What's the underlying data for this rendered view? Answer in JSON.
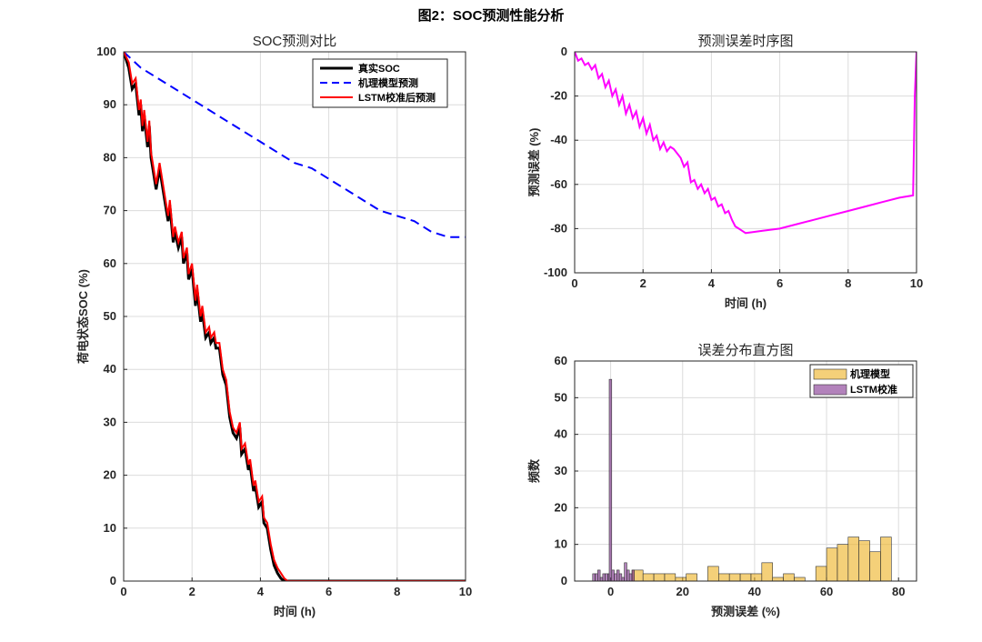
{
  "figure": {
    "title": "图2：SOC预测性能分析"
  },
  "chart_data": [
    {
      "id": "soc",
      "type": "line",
      "title": "SOC预测对比",
      "xlabel": "时间 (h)",
      "ylabel": "荷电状态SOC (%)",
      "xlim": [
        0,
        10
      ],
      "ylim": [
        0,
        100
      ],
      "xticks": [
        0,
        2,
        4,
        6,
        8,
        10
      ],
      "yticks": [
        0,
        10,
        20,
        30,
        40,
        50,
        60,
        70,
        80,
        90,
        100
      ],
      "grid": true,
      "legend": "top-right",
      "series": [
        {
          "name": "真实SOC",
          "color": "#000000",
          "style": "solid",
          "x": [
            0,
            0.15,
            0.25,
            0.35,
            0.45,
            0.5,
            0.55,
            0.6,
            0.7,
            0.75,
            0.8,
            0.85,
            0.95,
            1.05,
            1.1,
            1.2,
            1.3,
            1.35,
            1.45,
            1.5,
            1.6,
            1.7,
            1.75,
            1.85,
            1.9,
            2.0,
            2.1,
            2.15,
            2.25,
            2.3,
            2.4,
            2.5,
            2.55,
            2.65,
            2.7,
            2.8,
            2.9,
            3.0,
            3.1,
            3.2,
            3.3,
            3.4,
            3.45,
            3.55,
            3.65,
            3.7,
            3.8,
            3.85,
            3.95,
            4.05,
            4.1,
            4.2,
            4.3,
            4.4,
            4.5,
            4.6,
            4.7,
            4.8,
            4.9,
            5.0,
            5.05,
            10
          ],
          "y": [
            100,
            97,
            93,
            94,
            88,
            90,
            85,
            88,
            82,
            86,
            80,
            78,
            74,
            78,
            76,
            72,
            68,
            71,
            64,
            66,
            63,
            65,
            60,
            62,
            57,
            59,
            52,
            55,
            49,
            51,
            46,
            47,
            45,
            46,
            44,
            44,
            39,
            37,
            31,
            28,
            27,
            29,
            24,
            25,
            21,
            22,
            17,
            18,
            14,
            15,
            11,
            10,
            6,
            3,
            1.5,
            0.5,
            0,
            0,
            0,
            0,
            0,
            0
          ]
        },
        {
          "name": "机理模型预测",
          "color": "#0000ff",
          "style": "dashed",
          "x": [
            0,
            0.5,
            1,
            1.5,
            2,
            2.5,
            3,
            3.5,
            4,
            4.5,
            5,
            5.5,
            6,
            6.5,
            7,
            7.5,
            8,
            8.5,
            9,
            9.5,
            10
          ],
          "y": [
            100,
            97,
            95,
            93,
            91,
            89,
            87,
            85,
            83,
            81,
            79,
            78,
            76,
            74,
            72,
            70,
            69,
            68,
            66,
            65,
            65
          ]
        },
        {
          "name": "LSTM校准后预测",
          "color": "#ff0000",
          "style": "solid",
          "x": [
            0,
            0.15,
            0.25,
            0.35,
            0.45,
            0.5,
            0.55,
            0.6,
            0.7,
            0.75,
            0.8,
            0.85,
            0.95,
            1.05,
            1.1,
            1.2,
            1.3,
            1.35,
            1.45,
            1.5,
            1.6,
            1.7,
            1.75,
            1.85,
            1.9,
            2.0,
            2.1,
            2.15,
            2.25,
            2.3,
            2.4,
            2.5,
            2.55,
            2.65,
            2.7,
            2.8,
            2.9,
            3.0,
            3.1,
            3.2,
            3.3,
            3.4,
            3.45,
            3.55,
            3.65,
            3.7,
            3.8,
            3.85,
            3.95,
            4.05,
            4.1,
            4.2,
            4.3,
            4.4,
            4.5,
            4.6,
            4.7,
            4.8,
            4.9,
            5.0,
            5.1,
            10
          ],
          "y": [
            100,
            98,
            94,
            95,
            89,
            91,
            86,
            89,
            83,
            87,
            81,
            79,
            75,
            79,
            77,
            73,
            69,
            72,
            65,
            67,
            64,
            66,
            61,
            63,
            58,
            60,
            53,
            56,
            50,
            52,
            47,
            48,
            46,
            47,
            45,
            45,
            40,
            38,
            32,
            29,
            28,
            30,
            25,
            26,
            22,
            23,
            18,
            19,
            15,
            16,
            12,
            11,
            7,
            4,
            2.5,
            1.5,
            0.5,
            0,
            0,
            0,
            0,
            0
          ]
        }
      ]
    },
    {
      "id": "err",
      "type": "line",
      "title": "预测误差时序图",
      "xlabel": "时间 (h)",
      "ylabel": "预测误差 (%)",
      "xlim": [
        0,
        10
      ],
      "ylim": [
        -100,
        0
      ],
      "xticks": [
        0,
        2,
        4,
        6,
        8,
        10
      ],
      "yticks": [
        -100,
        -80,
        -60,
        -40,
        -20,
        0
      ],
      "grid": true,
      "series": [
        {
          "name": "预测误差",
          "color": "#ff00ff",
          "style": "solid",
          "x": [
            0,
            0.1,
            0.2,
            0.3,
            0.4,
            0.5,
            0.6,
            0.7,
            0.8,
            0.9,
            1.0,
            1.1,
            1.2,
            1.3,
            1.4,
            1.5,
            1.6,
            1.7,
            1.8,
            1.9,
            2.0,
            2.1,
            2.2,
            2.3,
            2.4,
            2.5,
            2.6,
            2.7,
            2.8,
            2.9,
            3.0,
            3.1,
            3.2,
            3.3,
            3.4,
            3.5,
            3.6,
            3.7,
            3.8,
            3.9,
            4.0,
            4.1,
            4.2,
            4.3,
            4.4,
            4.5,
            4.6,
            4.7,
            4.8,
            4.9,
            5.0,
            5.5,
            6.0,
            6.5,
            7.0,
            7.5,
            8.0,
            8.5,
            9.0,
            9.5,
            9.9,
            9.95,
            10
          ],
          "y": [
            0,
            -4,
            -3,
            -6,
            -5,
            -8,
            -6,
            -12,
            -10,
            -16,
            -13,
            -20,
            -17,
            -24,
            -20,
            -28,
            -24,
            -30,
            -27,
            -34,
            -30,
            -37,
            -33,
            -40,
            -38,
            -44,
            -41,
            -45,
            -43,
            -44,
            -46,
            -48,
            -52,
            -50,
            -59,
            -58,
            -62,
            -60,
            -64,
            -62,
            -67,
            -66,
            -70,
            -69,
            -73,
            -72,
            -76,
            -79,
            -80,
            -81,
            -82,
            -81,
            -80,
            -78,
            -76,
            -74,
            -72,
            -70,
            -68,
            -66,
            -65,
            -20,
            0
          ]
        }
      ]
    },
    {
      "id": "hist",
      "type": "bar",
      "title": "误差分布直方图",
      "xlabel": "预测误差 (%)",
      "ylabel": "频数",
      "xlim": [
        -10,
        85
      ],
      "ylim": [
        0,
        60
      ],
      "xticks": [
        0,
        20,
        40,
        60,
        80
      ],
      "yticks": [
        0,
        10,
        20,
        30,
        40,
        50,
        60
      ],
      "grid": true,
      "legend": "top-right",
      "series": [
        {
          "name": "机理模型",
          "color": "#edb120",
          "opacity": 0.6,
          "bins": [
            [
              6,
              9,
              3
            ],
            [
              9,
              12,
              2
            ],
            [
              12,
              15,
              2
            ],
            [
              15,
              18,
              2
            ],
            [
              18,
              21,
              1
            ],
            [
              21,
              24,
              2
            ],
            [
              27,
              30,
              4
            ],
            [
              30,
              33,
              2
            ],
            [
              33,
              36,
              2
            ],
            [
              36,
              39,
              2
            ],
            [
              39,
              42,
              2
            ],
            [
              42,
              45,
              5
            ],
            [
              45,
              48,
              1
            ],
            [
              48,
              51,
              2
            ],
            [
              51,
              54,
              1
            ],
            [
              57,
              60,
              4
            ],
            [
              60,
              63,
              9
            ],
            [
              63,
              66,
              10
            ],
            [
              66,
              69,
              12
            ],
            [
              69,
              72,
              11
            ],
            [
              72,
              75,
              8
            ],
            [
              75,
              78,
              12
            ]
          ]
        },
        {
          "name": "LSTM校准",
          "color": "#7e2f8e",
          "opacity": 0.6,
          "bins": [
            [
              -5,
              -4.3,
              2
            ],
            [
              -4.3,
              -3.6,
              2
            ],
            [
              -3.6,
              -2.9,
              3
            ],
            [
              -2.9,
              -2.2,
              1
            ],
            [
              -2.2,
              -1.5,
              2
            ],
            [
              -1.5,
              -0.8,
              2
            ],
            [
              -0.8,
              -0.4,
              2
            ],
            [
              -0.4,
              0.3,
              55
            ],
            [
              0.3,
              1.0,
              3
            ],
            [
              1.0,
              1.7,
              2
            ],
            [
              1.7,
              2.4,
              3
            ],
            [
              2.4,
              3.1,
              2
            ],
            [
              3.1,
              3.8,
              1
            ],
            [
              3.8,
              4.5,
              5
            ],
            [
              4.5,
              5.2,
              3
            ],
            [
              5.2,
              5.9,
              2
            ],
            [
              5.9,
              6.6,
              3
            ]
          ]
        }
      ]
    }
  ]
}
